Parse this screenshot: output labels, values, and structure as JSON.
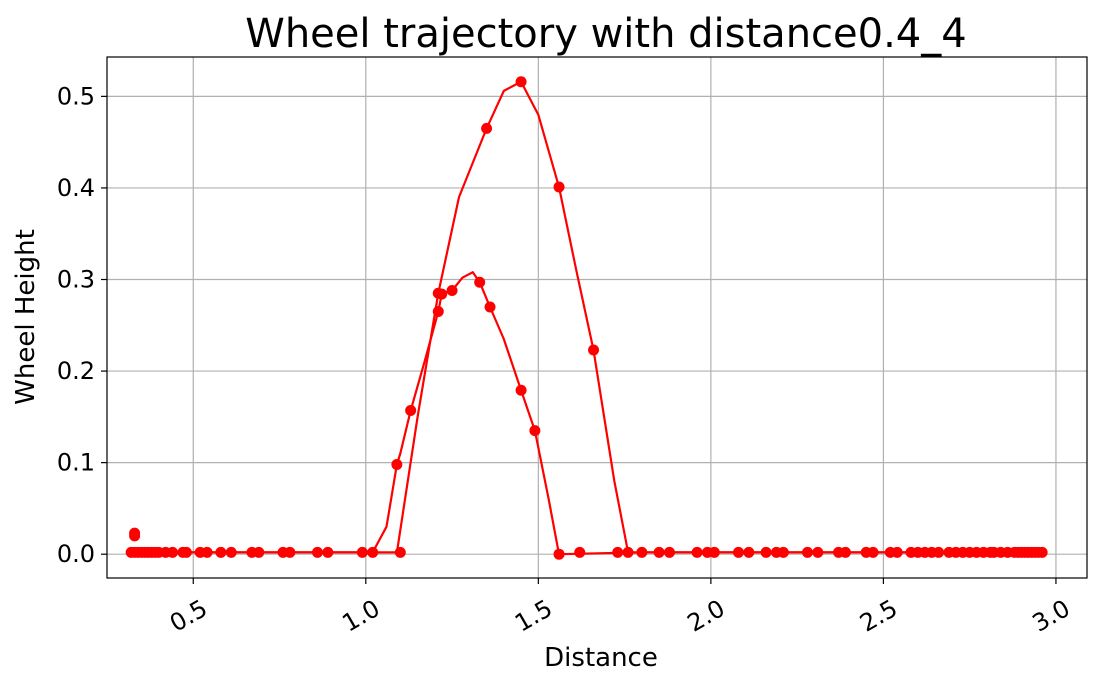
{
  "chart_data": {
    "type": "line",
    "title": "Wheel trajectory with distance0.4_4",
    "xlabel": "Distance",
    "ylabel": "Wheel Height",
    "xlim": [
      0.25,
      3.09
    ],
    "ylim": [
      -0.026,
      0.543
    ],
    "xticks": [
      "0.5",
      "1.0",
      "1.5",
      "2.0",
      "2.5",
      "3.0"
    ],
    "yticks": [
      "0.0",
      "0.1",
      "0.2",
      "0.3",
      "0.4",
      "0.5"
    ],
    "grid": true,
    "legend": null,
    "color": "#ff0000",
    "series": [
      {
        "style": "line-with-markers",
        "x": [
          0.33,
          0.42,
          0.6,
          0.9,
          1.02,
          1.06,
          1.09,
          1.1,
          1.13,
          1.17,
          1.21,
          1.22,
          1.25,
          1.28,
          1.31,
          1.33,
          1.36,
          1.4,
          1.45,
          1.49,
          1.53,
          1.56,
          1.8,
          2.2,
          2.6,
          2.96
        ],
        "y": [
          0.002,
          0.002,
          0.002,
          0.002,
          0.002,
          0.03,
          0.098,
          0.11,
          0.157,
          0.21,
          0.265,
          0.284,
          0.288,
          0.302,
          0.308,
          0.297,
          0.27,
          0.235,
          0.179,
          0.135,
          0.06,
          0.0,
          0.002,
          0.002,
          0.002,
          0.002
        ]
      },
      {
        "style": "line-with-markers",
        "x": [
          0.33,
          0.6,
          1.09,
          1.15,
          1.21,
          1.27,
          1.35,
          1.4,
          1.45,
          1.5,
          1.56,
          1.61,
          1.66,
          1.72,
          1.76,
          2.2,
          2.96
        ],
        "y": [
          0.002,
          0.002,
          0.002,
          0.15,
          0.285,
          0.39,
          0.465,
          0.506,
          0.516,
          0.48,
          0.401,
          0.31,
          0.223,
          0.08,
          0.002,
          0.002,
          0.002
        ]
      }
    ],
    "markers": {
      "x": [
        1.09,
        1.13,
        1.21,
        1.22,
        1.25,
        1.33,
        1.36,
        1.45,
        1.49,
        1.56,
        1.21,
        1.35,
        1.45,
        1.56,
        1.66,
        0.33,
        0.33
      ],
      "y": [
        0.098,
        0.157,
        0.265,
        0.284,
        0.288,
        0.297,
        0.27,
        0.179,
        0.135,
        0.0,
        0.285,
        0.465,
        0.516,
        0.401,
        0.223,
        0.02,
        0.023
      ]
    },
    "baseline_markers": {
      "y": 0.002,
      "x": [
        0.32,
        0.33,
        0.34,
        0.35,
        0.36,
        0.37,
        0.38,
        0.39,
        0.4,
        0.42,
        0.44,
        0.47,
        0.48,
        0.52,
        0.54,
        0.58,
        0.61,
        0.67,
        0.69,
        0.76,
        0.78,
        0.86,
        0.89,
        0.99,
        1.02,
        1.1,
        1.62,
        1.73,
        1.76,
        1.8,
        1.85,
        1.88,
        1.96,
        1.99,
        2.01,
        2.08,
        2.11,
        2.16,
        2.19,
        2.21,
        2.28,
        2.31,
        2.37,
        2.39,
        2.45,
        2.47,
        2.52,
        2.54,
        2.58,
        2.6,
        2.62,
        2.64,
        2.66,
        2.69,
        2.71,
        2.73,
        2.75,
        2.77,
        2.79,
        2.81,
        2.82,
        2.84,
        2.86,
        2.88,
        2.89,
        2.9,
        2.91,
        2.92,
        2.93,
        2.94,
        2.95,
        2.96
      ]
    }
  }
}
